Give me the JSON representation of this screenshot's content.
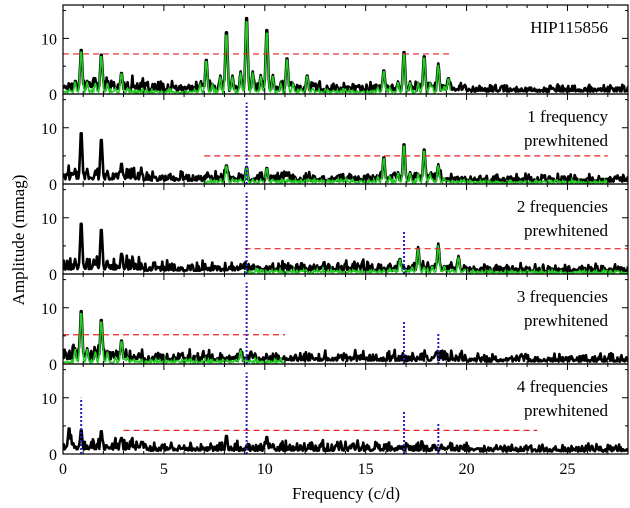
{
  "figure": {
    "xlabel": "Frequency (c/d)",
    "ylabel": "Amplitude (mmag)",
    "colors": {
      "observed": "#000000",
      "fit": "#22cc22",
      "threshold": "#ee2222",
      "markers": "#2222cc"
    }
  },
  "chart_data": [
    {
      "type": "line",
      "panel": 1,
      "label_lines": [
        "HIP115856"
      ],
      "xlim": [
        0,
        28
      ],
      "ylim": [
        0,
        16
      ],
      "xticks": [
        0,
        5,
        10,
        15,
        20,
        25
      ],
      "yticks": [
        0,
        10
      ],
      "threshold": {
        "level": 7.2,
        "x_range": [
          0,
          19.2
        ]
      },
      "markers": [],
      "green_range": [
        0,
        19.2
      ],
      "peaks": [
        {
          "x": 0.9,
          "y": 8.4
        },
        {
          "x": 1.9,
          "y": 7.5
        },
        {
          "x": 2.9,
          "y": 4.0
        },
        {
          "x": 7.1,
          "y": 6.5
        },
        {
          "x": 8.1,
          "y": 11.8
        },
        {
          "x": 9.1,
          "y": 14.5
        },
        {
          "x": 10.1,
          "y": 12.2
        },
        {
          "x": 11.1,
          "y": 6.8
        },
        {
          "x": 12.1,
          "y": 3.5
        },
        {
          "x": 15.9,
          "y": 4.5
        },
        {
          "x": 16.9,
          "y": 8.0
        },
        {
          "x": 17.9,
          "y": 7.2
        },
        {
          "x": 18.6,
          "y": 5.5
        },
        {
          "x": 19.1,
          "y": 3.0
        }
      ]
    },
    {
      "type": "line",
      "panel": 2,
      "label_lines": [
        "1 frequency",
        "prewhitened"
      ],
      "xlim": [
        0,
        28
      ],
      "ylim": [
        0,
        16
      ],
      "xticks": [
        0,
        5,
        10,
        15,
        20,
        25
      ],
      "yticks": [
        0,
        10
      ],
      "threshold": {
        "level": 5.0,
        "x_range": [
          7.0,
          27.0
        ]
      },
      "markers": [
        {
          "x": 9.1,
          "height": 14.5
        }
      ],
      "green_range": [
        7.0,
        27.0
      ],
      "peaks": [
        {
          "x": 0.9,
          "y": 9.6
        },
        {
          "x": 1.9,
          "y": 8.3
        },
        {
          "x": 2.9,
          "y": 3.8
        },
        {
          "x": 8.1,
          "y": 3.5
        },
        {
          "x": 9.1,
          "y": 3.2
        },
        {
          "x": 10.1,
          "y": 3.0
        },
        {
          "x": 15.9,
          "y": 5.0
        },
        {
          "x": 16.9,
          "y": 7.5
        },
        {
          "x": 17.9,
          "y": 6.5
        },
        {
          "x": 18.6,
          "y": 3.5
        }
      ]
    },
    {
      "type": "line",
      "panel": 3,
      "label_lines": [
        "2 frequencies",
        "prewhitened"
      ],
      "xlim": [
        0,
        28
      ],
      "ylim": [
        0,
        16
      ],
      "xticks": [
        0,
        5,
        10,
        15,
        20,
        25
      ],
      "yticks": [
        0,
        10
      ],
      "threshold": {
        "level": 4.5,
        "x_range": [
          9.0,
          28.0
        ]
      },
      "markers": [
        {
          "x": 9.1,
          "height": 14.5
        },
        {
          "x": 16.9,
          "height": 7.5
        }
      ],
      "green_range": [
        9.0,
        28.0
      ],
      "peaks": [
        {
          "x": 0.9,
          "y": 9.5
        },
        {
          "x": 1.9,
          "y": 8.3
        },
        {
          "x": 2.9,
          "y": 3.8
        },
        {
          "x": 16.7,
          "y": 2.8
        },
        {
          "x": 17.6,
          "y": 4.8
        },
        {
          "x": 18.6,
          "y": 5.4
        },
        {
          "x": 19.6,
          "y": 3.2
        }
      ]
    },
    {
      "type": "line",
      "panel": 4,
      "label_lines": [
        "3 frequencies",
        "prewhitened"
      ],
      "xlim": [
        0,
        28
      ],
      "ylim": [
        0,
        16
      ],
      "xticks": [
        0,
        5,
        10,
        15,
        20,
        25
      ],
      "yticks": [
        0,
        10
      ],
      "threshold": {
        "level": 5.2,
        "x_range": [
          0,
          11.0
        ]
      },
      "markers": [
        {
          "x": 9.1,
          "height": 14.5
        },
        {
          "x": 16.9,
          "height": 7.5
        },
        {
          "x": 18.6,
          "height": 5.4
        }
      ],
      "green_range": [
        0,
        11.0
      ],
      "peaks": [
        {
          "x": 0.9,
          "y": 10.0
        },
        {
          "x": 1.9,
          "y": 8.3
        },
        {
          "x": 2.9,
          "y": 4.4
        },
        {
          "x": 8.8,
          "y": 2.6
        }
      ]
    },
    {
      "type": "line",
      "panel": 5,
      "label_lines": [
        "4 frequencies",
        "prewhitened"
      ],
      "xlim": [
        0,
        28
      ],
      "ylim": [
        0,
        16
      ],
      "xticks": [
        0,
        5,
        10,
        15,
        20,
        25
      ],
      "yticks": [
        0,
        10
      ],
      "threshold": {
        "level": 4.2,
        "x_range": [
          3.0,
          23.5
        ]
      },
      "markers": [
        {
          "x": 0.9,
          "height": 10.0
        },
        {
          "x": 9.1,
          "height": 14.5
        },
        {
          "x": 16.9,
          "height": 7.5
        },
        {
          "x": 18.6,
          "height": 5.4
        }
      ],
      "green_range": [],
      "peaks": [
        {
          "x": 0.3,
          "y": 4.8
        },
        {
          "x": 0.9,
          "y": 4.5
        },
        {
          "x": 1.9,
          "y": 4.3
        },
        {
          "x": 2.9,
          "y": 3.0
        },
        {
          "x": 8.1,
          "y": 3.4
        },
        {
          "x": 10.1,
          "y": 3.2
        }
      ]
    }
  ]
}
